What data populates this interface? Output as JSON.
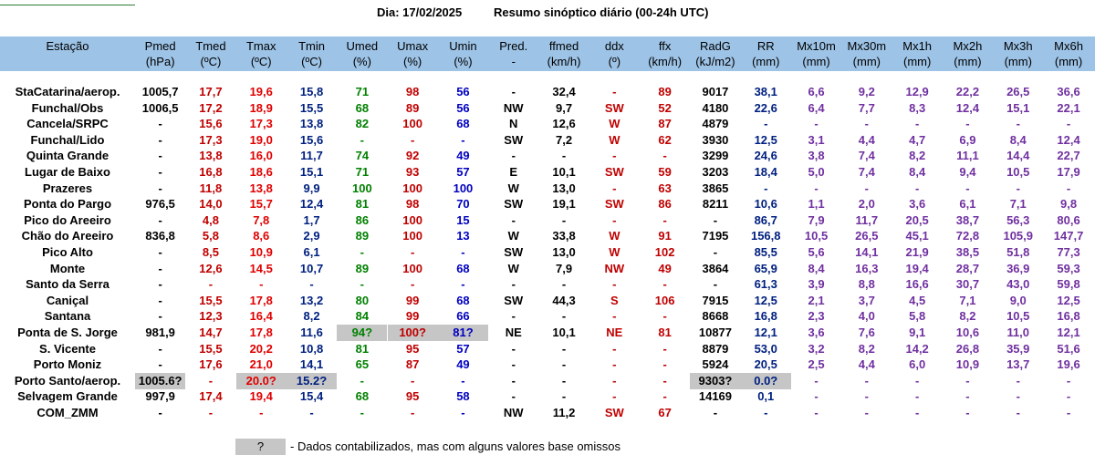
{
  "title": {
    "date": "Dia: 17/02/2025",
    "summary": "Resumo sinóptico diário (00-24h UTC)"
  },
  "table": {
    "header": [
      [
        "Estação",
        ""
      ],
      [
        "Pmed",
        "(hPa)"
      ],
      [
        "Tmed",
        "(ºC)"
      ],
      [
        "Tmax",
        "(ºC)"
      ],
      [
        "Tmin",
        "(ºC)"
      ],
      [
        "Umed",
        "(%)"
      ],
      [
        "Umax",
        "(%)"
      ],
      [
        "Umin",
        "(%)"
      ],
      [
        "Pred.",
        "-"
      ],
      [
        "ffmed",
        "(km/h)"
      ],
      [
        "ddx",
        "(º)"
      ],
      [
        "ffx",
        "(km/h)"
      ],
      [
        "RadG",
        "(kJ/m2)"
      ],
      [
        "RR",
        "(mm)"
      ],
      [
        "Mx10m",
        "(mm)"
      ],
      [
        "Mx30m",
        "(mm)"
      ],
      [
        "Mx1h",
        "(mm)"
      ],
      [
        "Mx2h",
        "(mm)"
      ],
      [
        "Mx3h",
        "(mm)"
      ],
      [
        "Mx6h",
        "(mm)"
      ]
    ],
    "rows": [
      [
        "StaCatarina/aerop.",
        "1005,7",
        "17,7",
        "19,6",
        "15,8",
        "71",
        "98",
        "56",
        "-",
        "32,4",
        "-",
        "89",
        "9017",
        "38,1",
        "6,6",
        "9,2",
        "12,9",
        "22,2",
        "26,5",
        "36,6"
      ],
      [
        "Funchal/Obs",
        "1006,5",
        "17,2",
        "18,9",
        "15,5",
        "68",
        "89",
        "56",
        "NW",
        "9,7",
        "SW",
        "52",
        "4180",
        "22,6",
        "6,4",
        "7,7",
        "8,3",
        "12,4",
        "15,1",
        "22,1"
      ],
      [
        "Cancela/SRPC",
        "-",
        "15,6",
        "17,3",
        "13,8",
        "82",
        "100",
        "68",
        "N",
        "12,6",
        "W",
        "87",
        "4879",
        "-",
        "-",
        "-",
        "-",
        "-",
        "-",
        "-"
      ],
      [
        "Funchal/Lido",
        "-",
        "17,3",
        "19,0",
        "15,6",
        "-",
        "-",
        "-",
        "SW",
        "7,2",
        "W",
        "62",
        "3930",
        "12,5",
        "3,1",
        "4,4",
        "4,7",
        "6,9",
        "8,4",
        "12,4"
      ],
      [
        "Quinta Grande",
        "-",
        "13,8",
        "16,0",
        "11,7",
        "74",
        "92",
        "49",
        "-",
        "-",
        "-",
        "-",
        "3299",
        "24,6",
        "3,8",
        "7,4",
        "8,2",
        "11,1",
        "14,4",
        "22,7"
      ],
      [
        "Lugar de Baixo",
        "-",
        "16,8",
        "18,6",
        "15,1",
        "71",
        "93",
        "57",
        "E",
        "10,1",
        "SW",
        "59",
        "3203",
        "18,4",
        "5,0",
        "7,4",
        "8,4",
        "9,4",
        "10,5",
        "17,9"
      ],
      [
        "Prazeres",
        "-",
        "11,8",
        "13,8",
        "9,9",
        "100",
        "100",
        "100",
        "W",
        "13,0",
        "-",
        "63",
        "3865",
        "-",
        "-",
        "-",
        "-",
        "-",
        "-",
        "-"
      ],
      [
        "Ponta do Pargo",
        "976,5",
        "14,0",
        "15,7",
        "12,4",
        "81",
        "98",
        "70",
        "SW",
        "19,1",
        "SW",
        "86",
        "8211",
        "10,6",
        "1,1",
        "2,0",
        "3,6",
        "6,1",
        "7,1",
        "9,8"
      ],
      [
        "Pico do Areeiro",
        "-",
        "4,8",
        "7,8",
        "1,7",
        "86",
        "100",
        "15",
        "-",
        "-",
        "-",
        "-",
        "-",
        "86,7",
        "7,9",
        "11,7",
        "20,5",
        "38,7",
        "56,3",
        "80,6"
      ],
      [
        "Chão do Areeiro",
        "836,8",
        "5,8",
        "8,6",
        "2,9",
        "89",
        "100",
        "13",
        "W",
        "33,8",
        "W",
        "91",
        "7195",
        "156,8",
        "10,5",
        "26,5",
        "45,1",
        "72,8",
        "105,9",
        "147,7"
      ],
      [
        "Pico Alto",
        "-",
        "8,5",
        "10,9",
        "6,1",
        "-",
        "-",
        "-",
        "SW",
        "13,0",
        "W",
        "102",
        "-",
        "85,5",
        "5,6",
        "14,1",
        "21,9",
        "38,5",
        "51,8",
        "77,3"
      ],
      [
        "Monte",
        "-",
        "12,6",
        "14,5",
        "10,7",
        "89",
        "100",
        "68",
        "W",
        "7,9",
        "NW",
        "49",
        "3864",
        "65,9",
        "8,4",
        "16,3",
        "19,4",
        "28,7",
        "36,9",
        "59,3"
      ],
      [
        "Santo da Serra",
        "-",
        "-",
        "-",
        "-",
        "-",
        "-",
        "-",
        "-",
        "-",
        "-",
        "-",
        "-",
        "61,3",
        "3,9",
        "8,8",
        "16,6",
        "30,7",
        "43,0",
        "59,8"
      ],
      [
        "Caniçal",
        "-",
        "15,5",
        "17,8",
        "13,2",
        "80",
        "99",
        "68",
        "SW",
        "44,3",
        "S",
        "106",
        "7915",
        "12,5",
        "2,1",
        "3,7",
        "4,5",
        "7,1",
        "9,0",
        "12,5"
      ],
      [
        "Santana",
        "-",
        "12,3",
        "16,4",
        "8,2",
        "84",
        "99",
        "66",
        "-",
        "-",
        "-",
        "-",
        "8668",
        "16,8",
        "2,3",
        "4,0",
        "5,8",
        "8,2",
        "10,5",
        "16,8"
      ],
      [
        "Ponta de S. Jorge",
        "981,9",
        "14,7",
        "17,8",
        "11,6",
        "94?",
        "100?",
        "81?",
        "NE",
        "10,1",
        "NE",
        "81",
        "10877",
        "12,1",
        "3,6",
        "7,6",
        "9,1",
        "10,6",
        "11,0",
        "12,1"
      ],
      [
        "S. Vicente",
        "-",
        "15,5",
        "20,2",
        "10,8",
        "81",
        "95",
        "57",
        "-",
        "-",
        "-",
        "-",
        "8879",
        "53,0",
        "3,2",
        "8,2",
        "14,2",
        "26,8",
        "35,9",
        "51,6"
      ],
      [
        "Porto Moniz",
        "-",
        "17,6",
        "21,0",
        "14,1",
        "65",
        "87",
        "49",
        "-",
        "-",
        "-",
        "-",
        "5924",
        "20,5",
        "2,5",
        "4,4",
        "6,0",
        "10,9",
        "13,7",
        "19,6"
      ],
      [
        "Porto Santo/aerop.",
        "1005.6?",
        "-",
        "20.0?",
        "15.2?",
        "-",
        "-",
        "-",
        "-",
        "-",
        "-",
        "-",
        "9303?",
        "0.0?",
        "-",
        "-",
        "-",
        "-",
        "-",
        "-"
      ],
      [
        "Selvagem Grande",
        "997,9",
        "17,4",
        "19,4",
        "15,4",
        "68",
        "95",
        "58",
        "-",
        "-",
        "-",
        "-",
        "14169",
        "0,1",
        "-",
        "-",
        "-",
        "-",
        "-",
        "-"
      ],
      [
        "COM_ZMM",
        "-",
        "-",
        "-",
        "-",
        "-",
        "-",
        "-",
        "NW",
        "11,2",
        "SW",
        "67",
        "-",
        "-",
        "-",
        "-",
        "-",
        "-",
        "-",
        "-"
      ]
    ]
  },
  "legend": {
    "symbol": "?",
    "text": "- Dados contabilizados, mas com alguns valores base omissos"
  }
}
